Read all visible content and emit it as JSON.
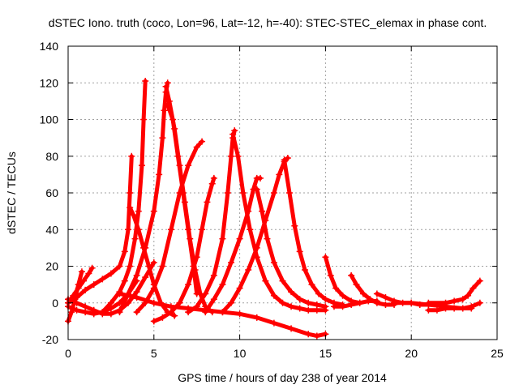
{
  "chart_data": {
    "type": "line",
    "title": "dSTEC Iono. truth (coco, Lon=96, Lat=-12, h=-40): STEC-STEC_elemax in phase cont.",
    "xlabel": "GPS time / hours of day 238 of year 2014",
    "ylabel": "dSTEC  / TECUs",
    "xlim": [
      0,
      25
    ],
    "ylim": [
      -20,
      140
    ],
    "xticks": [
      0,
      5,
      10,
      15,
      20,
      25
    ],
    "yticks": [
      -20,
      0,
      20,
      40,
      60,
      80,
      100,
      120,
      140
    ],
    "grid": true,
    "legend": "none",
    "color": "#ff0000",
    "marker": "plus",
    "series": [
      {
        "x": [
          0,
          0.3,
          0.6,
          0.9,
          1.2,
          1.4
        ],
        "y": [
          0,
          4,
          8,
          12,
          16,
          19
        ]
      },
      {
        "x": [
          0,
          0.2,
          0.4,
          0.6,
          0.8
        ],
        "y": [
          -10,
          -5,
          2,
          10,
          17
        ]
      },
      {
        "x": [
          0,
          0.5,
          1.0,
          1.5,
          2.0,
          2.5,
          3.0,
          3.3,
          3.5,
          3.6,
          3.7
        ],
        "y": [
          0,
          3,
          7,
          10,
          13,
          16,
          20,
          28,
          40,
          60,
          80
        ]
      },
      {
        "x": [
          3.6,
          3.8,
          4.1,
          4.4,
          4.7,
          5.0,
          5.4,
          5.8,
          6.2
        ],
        "y": [
          52,
          48,
          40,
          30,
          20,
          10,
          0,
          -5,
          -7
        ]
      },
      {
        "x": [
          2.0,
          2.5,
          3.0,
          3.3,
          3.6,
          3.9,
          4.1,
          4.3,
          4.4,
          4.5
        ],
        "y": [
          -5,
          0,
          6,
          12,
          20,
          35,
          50,
          75,
          100,
          121
        ]
      },
      {
        "x": [
          3.0,
          3.5,
          4.0,
          4.5,
          5.0,
          5.3,
          5.5,
          5.6,
          5.7,
          5.8
        ],
        "y": [
          -5,
          5,
          15,
          30,
          50,
          70,
          90,
          105,
          115,
          120
        ]
      },
      {
        "x": [
          5.7,
          5.9,
          6.2,
          6.5,
          6.8,
          7.1,
          7.4,
          7.7,
          8.0,
          8.4
        ],
        "y": [
          118,
          110,
          95,
          75,
          55,
          35,
          18,
          5,
          -2,
          -5
        ]
      },
      {
        "x": [
          5.8,
          6.1,
          6.4,
          6.7,
          7.0,
          7.3,
          7.5
        ],
        "y": [
          108,
          100,
          80,
          60,
          40,
          20,
          5
        ]
      },
      {
        "x": [
          4.0,
          4.5,
          5.0,
          5.5,
          6.0,
          6.5,
          7.0,
          7.5,
          7.8
        ],
        "y": [
          -5,
          0,
          8,
          20,
          40,
          60,
          75,
          85,
          88
        ]
      },
      {
        "x": [
          5.0,
          5.5,
          6.0,
          6.5,
          7.0,
          7.5,
          7.8,
          8.1,
          8.4,
          8.5
        ],
        "y": [
          -10,
          -8,
          -5,
          0,
          10,
          25,
          40,
          55,
          65,
          68
        ]
      },
      {
        "x": [
          7.0,
          7.5,
          8.0,
          8.5,
          9.0,
          9.3,
          9.5,
          9.6,
          9.7
        ],
        "y": [
          -5,
          -2,
          5,
          15,
          35,
          60,
          80,
          90,
          94
        ]
      },
      {
        "x": [
          9.6,
          9.9,
          10.2,
          10.6,
          11.0,
          11.5,
          12.0,
          12.5,
          13.0,
          13.5,
          14.0,
          14.5,
          15.0
        ],
        "y": [
          92,
          80,
          60,
          40,
          25,
          12,
          4,
          0,
          -2,
          -3,
          -4,
          -4,
          -4
        ]
      },
      {
        "x": [
          8.0,
          8.5,
          9.0,
          9.5,
          10.0,
          10.5,
          10.8,
          11.0,
          11.2
        ],
        "y": [
          -5,
          2,
          10,
          22,
          35,
          50,
          62,
          68,
          68
        ]
      },
      {
        "x": [
          11.0,
          11.3,
          11.6,
          12.0,
          12.5,
          13.0,
          13.5,
          14.0,
          14.5,
          15.0
        ],
        "y": [
          62,
          50,
          35,
          22,
          12,
          6,
          2,
          0,
          -1,
          -2
        ]
      },
      {
        "x": [
          9.0,
          9.5,
          10.0,
          10.5,
          11.0,
          11.5,
          12.0,
          12.3,
          12.6,
          12.8
        ],
        "y": [
          -5,
          0,
          8,
          18,
          30,
          45,
          60,
          70,
          77,
          79
        ]
      },
      {
        "x": [
          12.6,
          12.9,
          13.2,
          13.5,
          13.8,
          14.2,
          14.6,
          15.0,
          15.5,
          16.0
        ],
        "y": [
          78,
          60,
          42,
          28,
          18,
          10,
          5,
          2,
          0,
          -1
        ]
      },
      {
        "x": [
          3.0,
          4.0,
          5.0,
          6.0,
          7.0,
          8.0,
          9.0,
          10.0,
          11.0,
          12.0,
          13.0,
          14.0,
          14.5,
          15.0
        ],
        "y": [
          5,
          3,
          0,
          -2,
          -3,
          -4,
          -5,
          -6,
          -8,
          -11,
          -14,
          -17,
          -18,
          -17
        ]
      },
      {
        "x": [
          0,
          0.5,
          1.0,
          1.5,
          2.0,
          2.5,
          3.0,
          3.5,
          4.0
        ],
        "y": [
          -2,
          -4,
          -5,
          -6,
          -5,
          -3,
          0,
          5,
          12
        ]
      },
      {
        "x": [
          0,
          0.5,
          1.0,
          1.5,
          2.0,
          2.5,
          3.0,
          3.5,
          4.0,
          4.5,
          5.0
        ],
        "y": [
          2,
          0,
          -2,
          -4,
          -6,
          -6,
          -4,
          0,
          6,
          14,
          22
        ]
      },
      {
        "x": [
          15.0,
          15.3,
          15.6,
          16.0,
          16.5,
          17.0
        ],
        "y": [
          25,
          15,
          8,
          4,
          1,
          0
        ]
      },
      {
        "x": [
          15.5,
          16.0,
          16.5,
          17.0,
          17.5,
          18.0
        ],
        "y": [
          -2,
          -2,
          -1,
          0,
          1,
          1
        ]
      },
      {
        "x": [
          16.5,
          16.8,
          17.2,
          17.6,
          18.0,
          18.5,
          19.0
        ],
        "y": [
          15,
          10,
          5,
          2,
          0,
          -1,
          -1
        ]
      },
      {
        "x": [
          18.0,
          18.5,
          19.0,
          19.5,
          20.0,
          20.5,
          21.0
        ],
        "y": [
          5,
          3,
          1,
          0,
          0,
          -1,
          -1
        ]
      },
      {
        "x": [
          19.0,
          20.0,
          21.0,
          22.0,
          23.0,
          23.5
        ],
        "y": [
          0,
          0,
          -1,
          -2,
          -3,
          -3
        ]
      },
      {
        "x": [
          21.0,
          21.5,
          22.0,
          22.5,
          23.0,
          23.5,
          24.0
        ],
        "y": [
          -4,
          -4,
          -3,
          -3,
          -3,
          -2,
          0
        ]
      },
      {
        "x": [
          21.0,
          22.0,
          22.5,
          23.0,
          23.3,
          23.6,
          24.0
        ],
        "y": [
          0,
          0,
          1,
          2,
          4,
          8,
          12
        ]
      }
    ]
  }
}
